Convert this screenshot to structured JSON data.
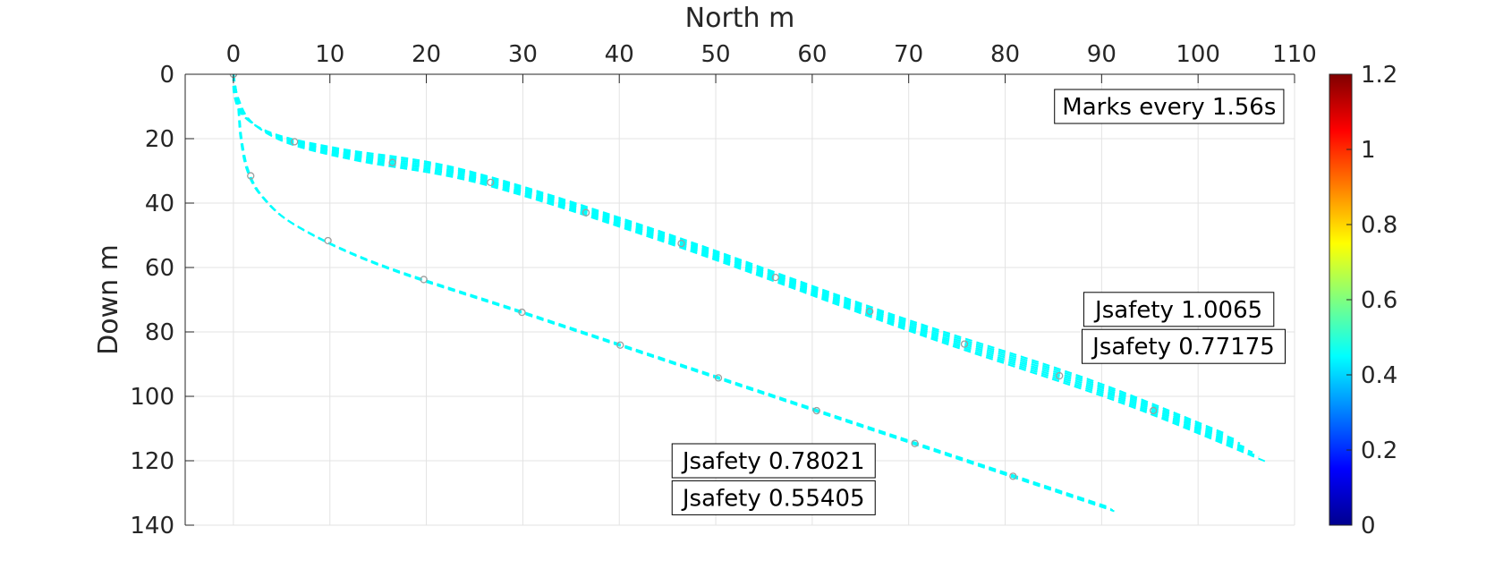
{
  "chart_data": {
    "type": "line",
    "xlabel": "North m",
    "ylabel": "Down m",
    "xlim": [
      -5,
      110
    ],
    "ylim": [
      0,
      140
    ],
    "y_reversed": true,
    "x_axis_location": "top",
    "grid": true,
    "xticks": [
      "0",
      "10",
      "20",
      "30",
      "40",
      "50",
      "60",
      "70",
      "80",
      "90",
      "100",
      "110"
    ],
    "yticks": [
      "0",
      "20",
      "40",
      "60",
      "80",
      "100",
      "120",
      "140"
    ],
    "colorbar": {
      "colormap": "jet",
      "range": [
        0,
        1.2
      ],
      "ticks": [
        "0",
        "0.2",
        "0.4",
        "0.6",
        "0.8",
        "1",
        "1.2"
      ]
    },
    "annotations": [
      {
        "text": "Marks every 1.56s",
        "x": 97,
        "y": 10
      },
      {
        "text": "Jsafety 1.0065",
        "x": 98,
        "y": 73
      },
      {
        "text": "Jsafety 0.77175",
        "x": 98.5,
        "y": 84.5
      },
      {
        "text": "Jsafety 0.78021",
        "x": 56,
        "y": 120
      },
      {
        "text": "Jsafety 0.55405",
        "x": 56,
        "y": 131.5
      }
    ],
    "series": [
      {
        "line_style": "dashed",
        "color_value": 0.45,
        "x": [
          0,
          0.3,
          1.5,
          5,
          12,
          25,
          45,
          70,
          90,
          105
        ],
        "y": [
          0,
          7,
          14,
          20,
          25,
          32,
          51,
          78,
          98,
          116
        ]
      },
      {
        "line_style": "dashed",
        "color_value": 0.45,
        "x": [
          0,
          0.5,
          0.8,
          1.5,
          3,
          6.5,
          15,
          30,
          53,
          72,
          91
        ],
        "y": [
          0,
          10,
          20,
          30,
          38,
          47,
          59,
          74,
          97,
          116,
          135
        ]
      }
    ]
  }
}
